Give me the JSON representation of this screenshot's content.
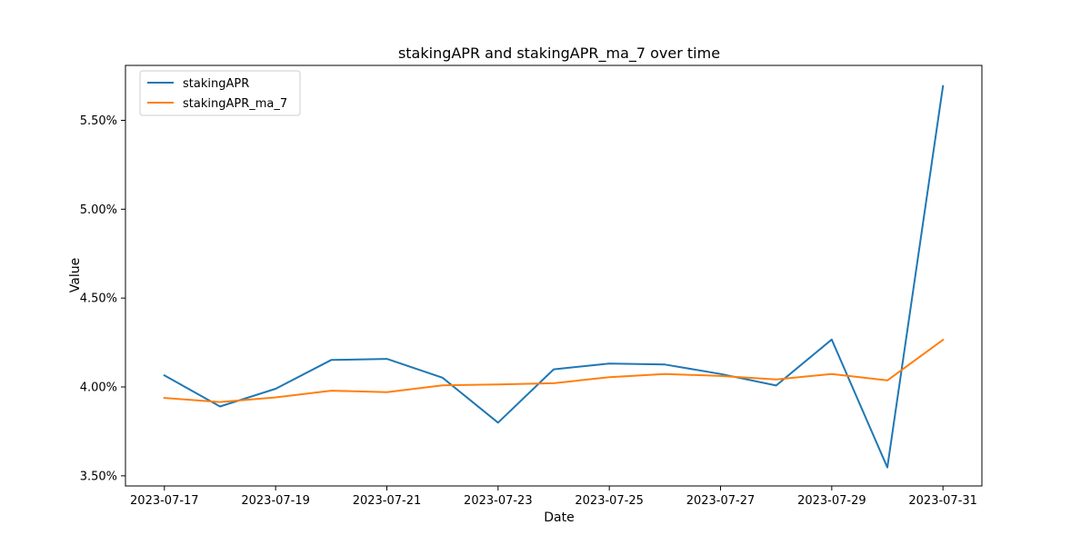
{
  "chart_data": {
    "type": "line",
    "title": "stakingAPR and stakingAPR_ma_7 over time",
    "xlabel": "Date",
    "ylabel": "Value",
    "x": [
      "2023-07-17",
      "2023-07-18",
      "2023-07-19",
      "2023-07-20",
      "2023-07-21",
      "2023-07-22",
      "2023-07-23",
      "2023-07-24",
      "2023-07-25",
      "2023-07-26",
      "2023-07-27",
      "2023-07-28",
      "2023-07-29",
      "2023-07-30",
      "2023-07-31"
    ],
    "xticks": [
      "2023-07-17",
      "2023-07-19",
      "2023-07-21",
      "2023-07-23",
      "2023-07-25",
      "2023-07-27",
      "2023-07-29",
      "2023-07-31"
    ],
    "xlim": [
      "2023-07-16T07:12",
      "2023-07-31T16:48"
    ],
    "yticks": [
      0.035,
      0.04,
      0.045,
      0.05,
      0.055
    ],
    "ytick_labels": [
      "3.50%",
      "4.00%",
      "4.50%",
      "5.00%",
      "5.50%"
    ],
    "ylim": [
      0.03443,
      0.05809
    ],
    "grid": false,
    "legend_position": "upper-left",
    "series": [
      {
        "name": "stakingAPR",
        "color": "#1f77b4",
        "values": [
          0.04065,
          0.0389,
          0.0399,
          0.04152,
          0.04158,
          0.04052,
          0.03799,
          0.04099,
          0.04132,
          0.04126,
          0.04073,
          0.04008,
          0.04267,
          0.03547,
          0.05693
        ]
      },
      {
        "name": "stakingAPR_ma_7",
        "color": "#ff7f0e",
        "values": [
          0.03938,
          0.03915,
          0.03941,
          0.03979,
          0.03971,
          0.04009,
          0.04014,
          0.04021,
          0.04055,
          0.04073,
          0.04062,
          0.04042,
          0.04073,
          0.04037,
          0.04265
        ]
      }
    ]
  }
}
